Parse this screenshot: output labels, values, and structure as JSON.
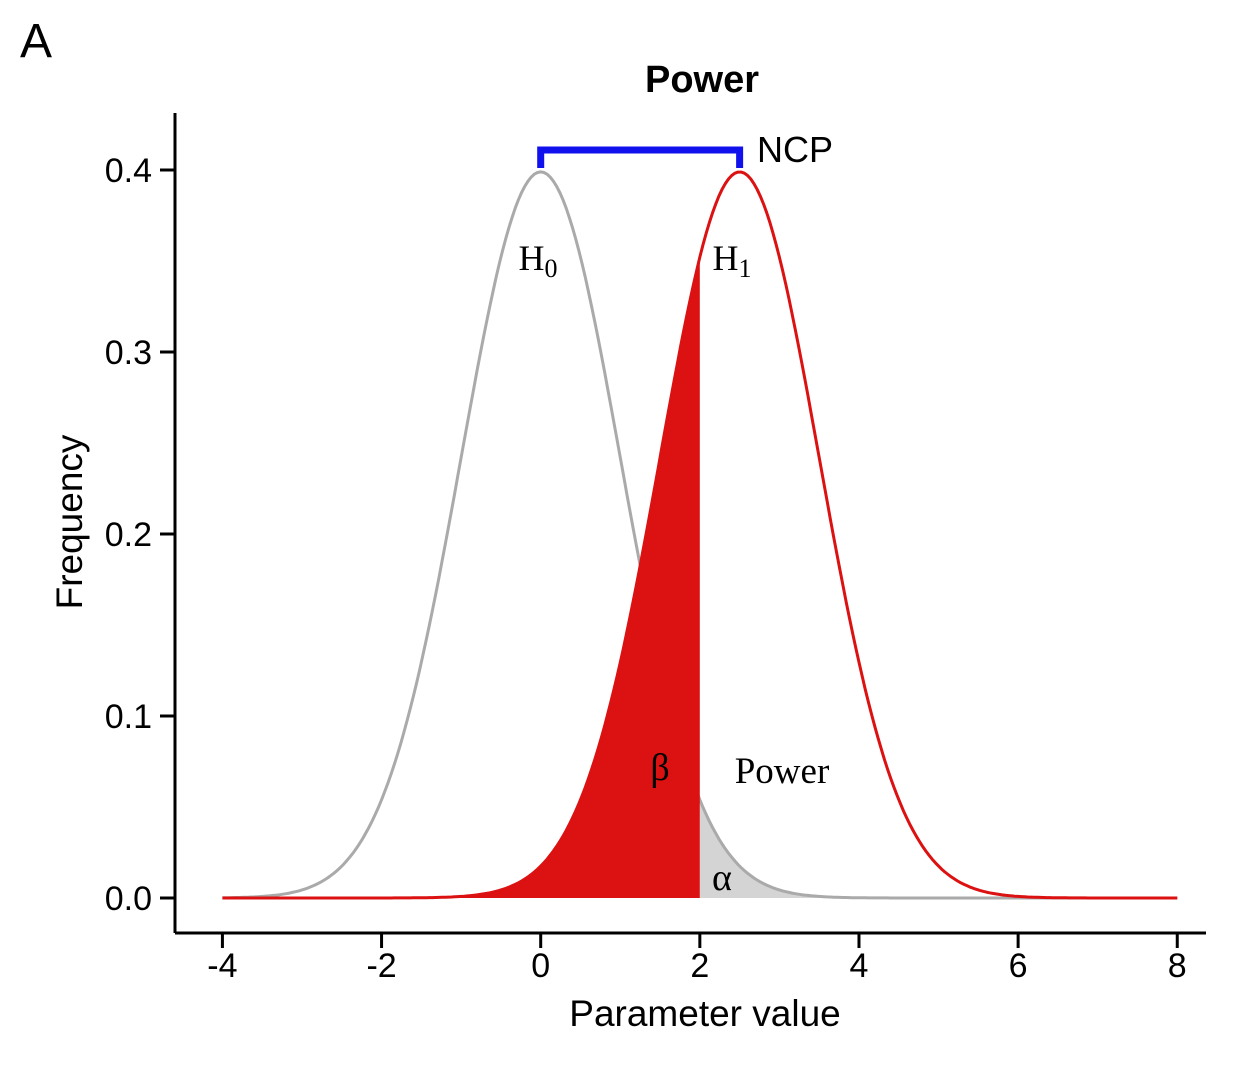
{
  "panel_label": "A",
  "chart_data": {
    "type": "area",
    "title": "Power",
    "xlabel": "Parameter value",
    "ylabel": "Frequency",
    "xlim": [
      -4,
      8
    ],
    "ylim": [
      0,
      0.4
    ],
    "grid": false,
    "x_ticks": {
      "values": [
        -4,
        -2,
        0,
        2,
        4,
        6,
        8
      ],
      "labels": [
        "-4",
        "-2",
        "0",
        "2",
        "4",
        "6",
        "8"
      ]
    },
    "y_ticks": {
      "values": [
        0,
        0.1,
        0.2,
        0.3,
        0.4
      ],
      "labels": [
        "0.0",
        "0.1",
        "0.2",
        "0.3",
        "0.4"
      ]
    },
    "distributions": [
      {
        "name": "H0",
        "mean": 0,
        "sd": 1,
        "peak_density": 0.3989,
        "curve_color": "#AAAAAA",
        "label_main": "H",
        "label_sub": "0"
      },
      {
        "name": "H1",
        "mean": 2.5,
        "sd": 1,
        "peak_density": 0.3989,
        "curve_color": "#DC1111",
        "label_main": "H",
        "label_sub": "1"
      }
    ],
    "critical_value": 2,
    "regions": {
      "beta": {
        "label": "β",
        "fill": "#DC1111"
      },
      "alpha": {
        "label": "α",
        "fill": "#D4D4D4"
      },
      "power": {
        "label": "Power"
      }
    },
    "ncp": {
      "label": "NCP",
      "from_mean": 0,
      "to_mean": 2.5,
      "bracket_color": "#1111EE"
    },
    "axis_color": "#000000"
  }
}
